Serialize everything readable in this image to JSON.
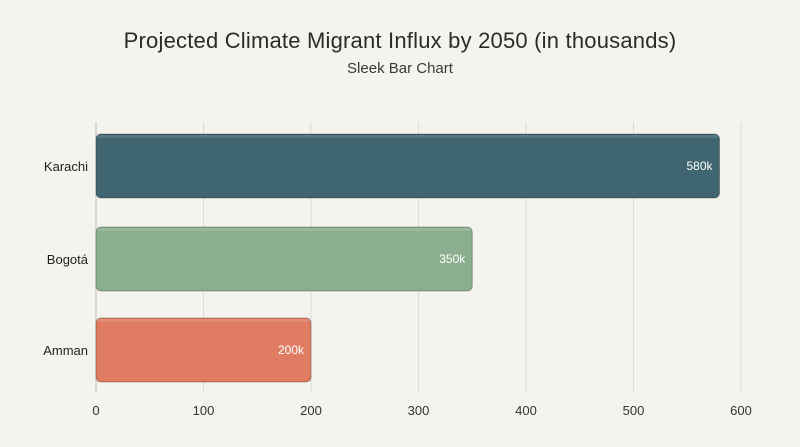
{
  "chart_data": {
    "type": "bar",
    "orientation": "horizontal",
    "title": "Projected Climate Migrant Influx by 2050 (in thousands)",
    "subtitle": "Sleek Bar Chart",
    "categories": [
      "Karachi",
      "Bogotá",
      "Amman"
    ],
    "values": [
      580,
      350,
      200
    ],
    "data_labels": [
      "580k",
      "350k",
      "200k"
    ],
    "colors": [
      "#3f6570",
      "#8aae8e",
      "#df7c62"
    ],
    "xlabel": "",
    "ylabel": "",
    "xlim": [
      0,
      600
    ],
    "xticks": [
      0,
      100,
      200,
      300,
      400,
      500,
      600
    ],
    "grid": true,
    "legend": "none"
  }
}
